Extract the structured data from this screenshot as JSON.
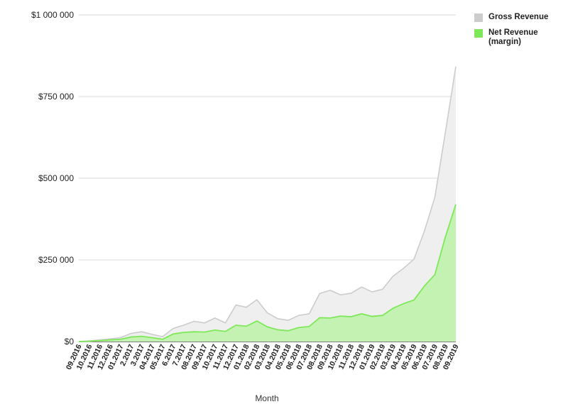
{
  "chart_data": {
    "type": "area",
    "xlabel": "Month",
    "ylabel": "",
    "title": "",
    "ylim": [
      0,
      1000000
    ],
    "yticks": [
      0,
      250000,
      500000,
      750000,
      1000000
    ],
    "ytick_labels": [
      "$0",
      "$250 000",
      "$500 000",
      "$750 000",
      "$1 000 000"
    ],
    "grid": true,
    "legend_position": "top-right",
    "stacked": false,
    "categories": [
      "09.2016",
      "10.2016",
      "11.2016",
      "12.2016",
      "01.2017",
      "2.2017",
      "3.2017",
      "04.2017",
      "05.2017",
      "6.2017",
      "7.2017",
      "08.2017",
      "09.2017",
      "10.2017",
      "11.2017",
      "12.2017",
      "01.2018",
      "02.2018",
      "03.2018",
      "04.2018",
      "05.2018",
      "06.2018",
      "07.2018",
      "08.2018",
      "09.2018",
      "10.2018",
      "11.2018",
      "12.2018",
      "01.2019",
      "02.2019",
      "03.2019",
      "04.2019",
      "05.2019",
      "06.2019",
      "07.2019",
      "08.2019",
      "09.2019"
    ],
    "series": [
      {
        "name": "Gross Revenue",
        "color": "#cccccc",
        "fill": "#efefef",
        "values": [
          0,
          2000,
          5000,
          8000,
          12000,
          25000,
          30000,
          22000,
          15000,
          40000,
          50000,
          62000,
          57000,
          72000,
          57000,
          112000,
          105000,
          128000,
          88000,
          70000,
          65000,
          80000,
          85000,
          147000,
          157000,
          143000,
          148000,
          167000,
          152000,
          160000,
          200000,
          224000,
          252000,
          338000,
          442000,
          640000,
          842000
        ]
      },
      {
        "name": "Net Revenue (margin)",
        "color": "#7ee85a",
        "fill": "#c4f2b3",
        "values": [
          0,
          1000,
          3000,
          5000,
          7000,
          14000,
          16000,
          12000,
          7000,
          23000,
          28000,
          30000,
          29000,
          35000,
          31000,
          50000,
          47000,
          63000,
          45000,
          36000,
          33000,
          43000,
          46000,
          73000,
          72000,
          78000,
          76000,
          85000,
          77000,
          80000,
          102000,
          116000,
          127000,
          170000,
          205000,
          320000,
          420000
        ]
      }
    ]
  }
}
